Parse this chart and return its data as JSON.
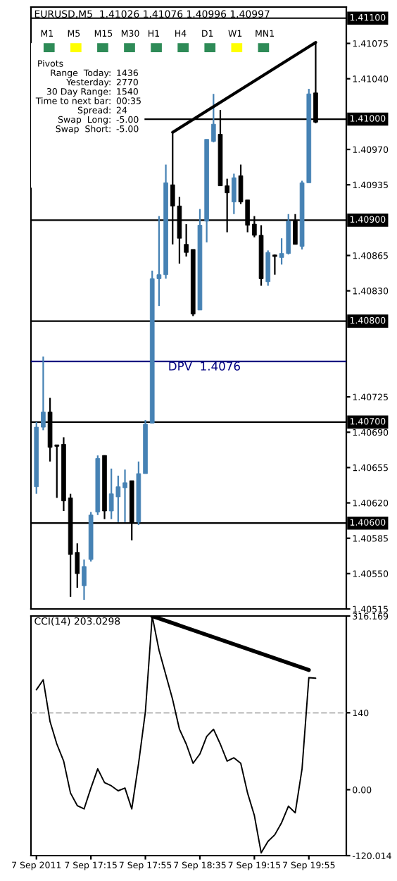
{
  "chart_data": [
    {
      "type": "candlestick",
      "title": "EURUSD,M5  1.41026 1.41076 1.40996 1.40997",
      "categories": [
        null,
        null,
        null,
        null,
        null,
        null,
        null,
        null,
        null,
        null,
        null,
        null,
        null,
        null,
        null,
        null,
        null,
        null,
        null,
        null,
        null,
        null,
        null,
        null,
        null,
        null,
        null,
        null,
        null,
        null,
        null,
        null,
        null,
        null,
        null,
        null,
        null,
        null,
        null,
        null,
        null,
        null
      ],
      "ohlc": [
        [
          1.40636,
          1.407,
          1.40629,
          1.40695
        ],
        [
          1.40695,
          1.40765,
          1.40692,
          1.4071
        ],
        [
          1.4071,
          1.40724,
          1.40661,
          1.40675
        ],
        [
          1.40677,
          1.40677,
          1.40625,
          1.40676
        ],
        [
          1.40678,
          1.40685,
          1.40612,
          1.40622
        ],
        [
          1.40625,
          1.40629,
          1.40527,
          1.40569
        ],
        [
          1.40571,
          1.4058,
          1.40536,
          1.4055
        ],
        [
          1.40538,
          1.40564,
          1.40524,
          1.40557
        ],
        [
          1.40564,
          1.40611,
          1.40562,
          1.40608
        ],
        [
          1.40611,
          1.40667,
          1.40608,
          1.40664
        ],
        [
          1.40667,
          1.40667,
          1.40604,
          1.40612
        ],
        [
          1.40612,
          1.40654,
          1.40604,
          1.40629
        ],
        [
          1.40626,
          1.40647,
          1.40601,
          1.40636
        ],
        [
          1.40635,
          1.40653,
          1.40601,
          1.4064
        ],
        [
          1.40642,
          1.40642,
          1.40583,
          1.406
        ],
        [
          1.40601,
          1.40661,
          1.40598,
          1.40649
        ],
        [
          1.40649,
          1.40702,
          1.40649,
          1.40698
        ],
        [
          1.40699,
          1.4085,
          1.40699,
          1.40842
        ],
        [
          1.40842,
          1.40904,
          1.40815,
          1.40846
        ],
        [
          1.40846,
          1.40955,
          1.40842,
          1.40937
        ],
        [
          1.40935,
          1.40987,
          1.40876,
          1.40914
        ],
        [
          1.40914,
          1.40923,
          1.40857,
          1.40882
        ],
        [
          1.40876,
          1.40896,
          1.40864,
          1.40868
        ],
        [
          1.40871,
          1.40871,
          1.40805,
          1.40807
        ],
        [
          1.40811,
          1.40911,
          1.40811,
          1.40895
        ],
        [
          1.40899,
          1.4098,
          1.40878,
          1.4098
        ],
        [
          1.40978,
          1.41025,
          1.40977,
          1.40995
        ],
        [
          1.40985,
          1.41009,
          1.40934,
          1.40934
        ],
        [
          1.40934,
          1.40941,
          1.40888,
          1.40927
        ],
        [
          1.40918,
          1.40946,
          1.40906,
          1.40942
        ],
        [
          1.40944,
          1.40955,
          1.40916,
          1.40918
        ],
        [
          1.4092,
          1.4092,
          1.40888,
          1.40895
        ],
        [
          1.40896,
          1.40904,
          1.40883,
          1.40885
        ],
        [
          1.40885,
          1.40895,
          1.40835,
          1.40842
        ],
        [
          1.40839,
          1.4087,
          1.40835,
          1.40868
        ],
        [
          1.40865,
          1.40866,
          1.40846,
          1.40864
        ],
        [
          1.40863,
          1.40882,
          1.40856,
          1.40867
        ],
        [
          1.40867,
          1.40906,
          1.40866,
          1.40899
        ],
        [
          1.40899,
          1.40906,
          1.40876,
          1.40876
        ],
        [
          1.40874,
          1.40939,
          1.40871,
          1.40937
        ],
        [
          1.40937,
          1.4103,
          1.40937,
          1.41025
        ],
        [
          1.41026,
          1.41076,
          1.40996,
          1.40997
        ]
      ],
      "colors": [
        "#4682b4",
        "#4682b4",
        "#000000",
        "#000000",
        "#000000",
        "#000000",
        "#000000",
        "#4682b4",
        "#4682b4",
        "#4682b4",
        "#000000",
        "#4682b4",
        "#4682b4",
        "#4682b4",
        "#000000",
        "#4682b4",
        "#4682b4",
        "#4682b4",
        "#4682b4",
        "#4682b4",
        "#000000",
        "#000000",
        "#000000",
        "#000000",
        "#4682b4",
        "#4682b4",
        "#4682b4",
        "#000000",
        "#000000",
        "#4682b4",
        "#000000",
        "#000000",
        "#000000",
        "#000000",
        "#4682b4",
        "#000000",
        "#4682b4",
        "#4682b4",
        "#000000",
        "#4682b4",
        "#4682b4",
        "#000000"
      ],
      "series": [
        {
          "type": "line",
          "values": [
            null,
            null,
            null,
            null,
            null,
            null,
            null,
            null,
            null,
            null,
            null,
            null,
            null,
            null,
            null,
            null,
            null,
            null,
            null,
            null,
            1.40987,
            null,
            null,
            null,
            null,
            null,
            null,
            null,
            null,
            null,
            null,
            null,
            null,
            null,
            null,
            null,
            null,
            null,
            null,
            null,
            null,
            1.41076
          ],
          "color": "#000000"
        }
      ],
      "ref_lines": [
        {
          "axis": "y",
          "value": 1.411,
          "label": "1.41100",
          "color": "#000000"
        },
        {
          "axis": "y",
          "value": 1.41,
          "label": "1.41000",
          "color": "#000000"
        },
        {
          "axis": "y",
          "value": 1.409,
          "label": "1.40900",
          "color": "#000000"
        },
        {
          "axis": "y",
          "value": 1.408,
          "label": "1.40800",
          "color": "#000000"
        },
        {
          "axis": "y",
          "value": 1.4076,
          "label": "DPV  1.4076",
          "color": "#000080"
        },
        {
          "axis": "y",
          "value": 1.407,
          "label": "1.40700",
          "color": "#000000"
        },
        {
          "axis": "y",
          "value": 1.406,
          "label": "1.40600",
          "color": "#000000"
        }
      ],
      "annotations": [
        "M1",
        "M5",
        "M15",
        "M30",
        "H1",
        "H4",
        "D1",
        "W1",
        "MN1",
        "Pivots",
        "Range  Today:",
        "1436",
        "Yesterday:",
        "2770",
        "30 Day Range:",
        "1540",
        "Time to next bar:",
        "00:35",
        "Spread:",
        "24",
        "Swap  Long:",
        "-5.00",
        "Swap  Short:",
        "-5.00"
      ],
      "ylim": [
        1.40515,
        1.41111
      ],
      "yticks": [
        1.41075,
        {
          "value": 1.4104,
          "label": "1.41040"
        },
        {
          "value": 1.4097,
          "label": "1.40970"
        },
        1.40935,
        1.40865,
        {
          "value": 1.4083,
          "label": "1.40830"
        },
        1.40725,
        {
          "value": 1.4069,
          "label": "1.40690"
        },
        1.40655,
        {
          "value": 1.4062,
          "label": "1.40620"
        },
        1.40585,
        {
          "value": 1.4055,
          "label": "1.40550"
        },
        1.40515
      ],
      "tick_labels": "y"
    },
    {
      "type": "line",
      "title": "CCI(14) 203.0298",
      "categories": [
        "7 Sep 2011",
        null,
        null,
        null,
        null,
        null,
        null,
        null,
        "7 Sep 17:15",
        null,
        null,
        null,
        null,
        null,
        null,
        null,
        "7 Sep 17:55",
        null,
        null,
        null,
        null,
        null,
        null,
        null,
        "7 Sep 18:35",
        null,
        null,
        null,
        null,
        null,
        null,
        null,
        "7 Sep 19:15",
        null,
        null,
        null,
        null,
        null,
        null,
        null,
        "7 Sep 19:55",
        null
      ],
      "series": [
        {
          "values": [
            182,
            200,
            124,
            83,
            52,
            -6,
            -29,
            -35,
            3,
            38,
            13,
            7,
            -2,
            3,
            -35,
            48,
            142,
            316,
            254,
            209,
            164,
            110,
            83,
            48,
            65,
            97,
            110,
            83,
            52,
            58,
            48,
            -6,
            -47,
            -115,
            -94,
            -82,
            -60,
            -30,
            -42,
            38,
            204,
            203
          ],
          "color": "#000000"
        },
        {
          "values": [
            null,
            null,
            null,
            null,
            null,
            null,
            null,
            null,
            null,
            null,
            null,
            null,
            null,
            null,
            null,
            null,
            null,
            316,
            null,
            null,
            null,
            null,
            null,
            null,
            null,
            null,
            null,
            null,
            null,
            null,
            null,
            null,
            null,
            null,
            null,
            null,
            null,
            null,
            null,
            null,
            218,
            null
          ],
          "color": "#000000"
        }
      ],
      "ref_lines": [
        {
          "axis": "y",
          "value": 140,
          "color": "#c0c0c0",
          "line_style": "dashed"
        }
      ],
      "ylim": [
        -120.014,
        316.169
      ],
      "yticks": [
        {
          "value": 316.169,
          "label": "316.169"
        },
        140,
        {
          "value": 0,
          "label": "0.00"
        },
        {
          "value": -120.014,
          "label": "-120.014"
        }
      ]
    }
  ]
}
